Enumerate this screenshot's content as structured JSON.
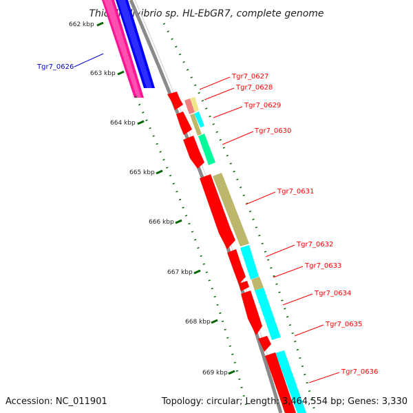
{
  "title": "Thioalkalivibrio sp. HL-EbGR7, complete genome",
  "accession": "Accession: NC_011901",
  "summary": "Topology: circular; Length: 3,464,554 bp; Genes: 3,330",
  "colors": {
    "backbone": "#8a8a8a",
    "cds_forward": "#ff0000",
    "cds_reverse": "#ff0000",
    "track_pink": "#ff1493",
    "track_blue": "#0000ff",
    "tick_green": "#006400",
    "label_red": "#ff0000",
    "label_blue": "#0000cc",
    "cog_khaki": "#bdb76b",
    "cog_cyan": "#00ffff",
    "cog_springgreen": "#00fa9a",
    "cog_salmon": "#f08080",
    "cog_yellow": "#f0e68c"
  },
  "ticks": [
    {
      "label": "662 kbp"
    },
    {
      "label": "663 kbp"
    },
    {
      "label": "664 kbp"
    },
    {
      "label": "665 kbp"
    },
    {
      "label": "666 kbp"
    },
    {
      "label": "667 kbp"
    },
    {
      "label": "668 kbp"
    },
    {
      "label": "669 kbp"
    }
  ],
  "genes": [
    {
      "label": "Tgr7_0626",
      "color": "blue"
    },
    {
      "label": "Tgr7_0627",
      "color": "red"
    },
    {
      "label": "Tgr7_0628",
      "color": "red"
    },
    {
      "label": "Tgr7_0629",
      "color": "red"
    },
    {
      "label": "Tgr7_0630",
      "color": "red"
    },
    {
      "label": "Tgr7_0631",
      "color": "red"
    },
    {
      "label": "Tgr7_0632",
      "color": "red"
    },
    {
      "label": "Tgr7_0633",
      "color": "red"
    },
    {
      "label": "Tgr7_0634",
      "color": "red"
    },
    {
      "label": "Tgr7_0635",
      "color": "red"
    },
    {
      "label": "Tgr7_0636",
      "color": "red"
    }
  ]
}
